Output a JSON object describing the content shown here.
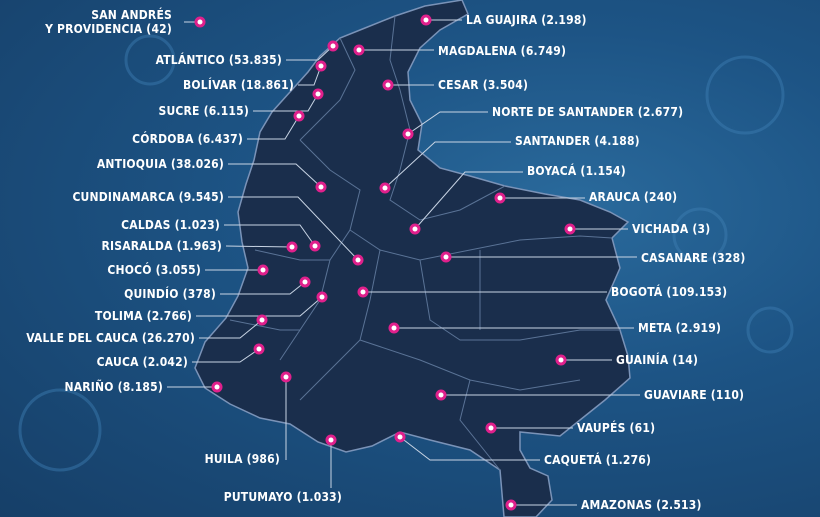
{
  "colors": {
    "background": "#1d4f7d",
    "land": "#1a2e4c",
    "border": "#5a7396",
    "marker": "#e0208c",
    "marker_center": "#ffffff",
    "label": "#ffffff"
  },
  "departments": [
    {
      "id": "san-andres",
      "label": "SAN ANDRÉS\nY PROVIDENCIA (42)"
    },
    {
      "id": "la-guajira",
      "label": "LA GUAJIRA (2.198)"
    },
    {
      "id": "atlantico",
      "label": "ATLÁNTICO (53.835)"
    },
    {
      "id": "magdalena",
      "label": "MAGDALENA (6.749)"
    },
    {
      "id": "bolivar",
      "label": "BOLÍVAR (18.861)"
    },
    {
      "id": "cesar",
      "label": "CESAR (3.504)"
    },
    {
      "id": "sucre",
      "label": "SUCRE (6.115)"
    },
    {
      "id": "norte-de-santander",
      "label": "NORTE DE SANTANDER (2.677)"
    },
    {
      "id": "cordoba",
      "label": "CÓRDOBA (6.437)"
    },
    {
      "id": "santander",
      "label": "SANTANDER (4.188)"
    },
    {
      "id": "antioquia",
      "label": "ANTIOQUIA (38.026)"
    },
    {
      "id": "boyaca",
      "label": "BOYACÁ (1.154)"
    },
    {
      "id": "cundinamarca",
      "label": "CUNDINAMARCA (9.545)"
    },
    {
      "id": "arauca",
      "label": "ARAUCA (240)"
    },
    {
      "id": "caldas",
      "label": "CALDAS (1.023)"
    },
    {
      "id": "vichada",
      "label": "VICHADA (3)"
    },
    {
      "id": "risaralda",
      "label": "RISARALDA (1.963)"
    },
    {
      "id": "casanare",
      "label": "CASANARE (328)"
    },
    {
      "id": "choco",
      "label": "CHOCÓ (3.055)"
    },
    {
      "id": "quindio",
      "label": "QUINDÍO (378)"
    },
    {
      "id": "bogota",
      "label": "BOGOTÁ (109.153)"
    },
    {
      "id": "tolima",
      "label": "TOLIMA (2.766)"
    },
    {
      "id": "valle-del-cauca",
      "label": "VALLE DEL CAUCA (26.270)"
    },
    {
      "id": "meta",
      "label": "META (2.919)"
    },
    {
      "id": "cauca",
      "label": "CAUCA (2.042)"
    },
    {
      "id": "guainia",
      "label": "GUAINÍA (14)"
    },
    {
      "id": "narino",
      "label": "NARIÑO (8.185)"
    },
    {
      "id": "guaviare",
      "label": "GUAVIARE (110)"
    },
    {
      "id": "vaupes",
      "label": "VAUPÉS (61)"
    },
    {
      "id": "huila",
      "label": "HUILA (986)"
    },
    {
      "id": "caqueta",
      "label": "CAQUETÁ (1.276)"
    },
    {
      "id": "putumayo",
      "label": "PUTUMAYO (1.033)"
    },
    {
      "id": "amazonas",
      "label": "AMAZONAS (2.513)"
    }
  ]
}
